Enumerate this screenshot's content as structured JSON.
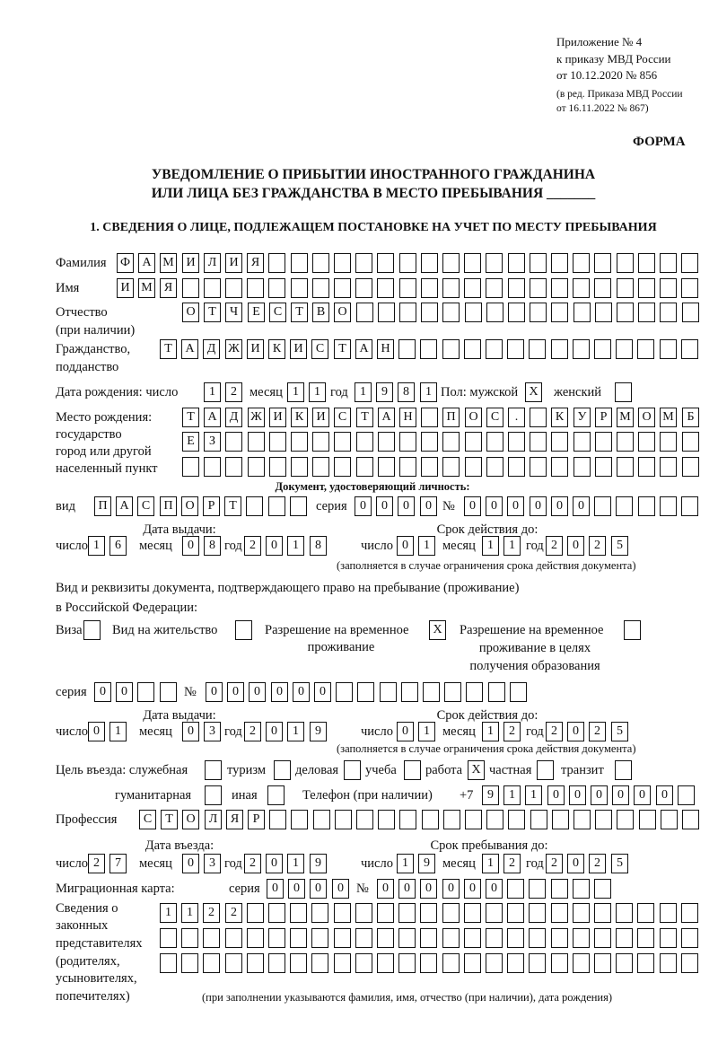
{
  "header": {
    "appendix": "Приложение № 4",
    "order": "к приказу МВД России",
    "order_date": "от 10.12.2020 № 856",
    "revision_1": "(в ред. Приказа МВД России",
    "revision_2": "от 16.11.2022 № 867)",
    "form_label": "ФОРМА"
  },
  "title": {
    "line1": "УВЕДОМЛЕНИЕ О ПРИБЫТИИ ИНОСТРАННОГО ГРАЖДАНИНА",
    "line2": "ИЛИ ЛИЦА БЕЗ ГРАЖДАНСТВА В МЕСТО ПРЕБЫВАНИЯ _______"
  },
  "section1": {
    "heading": "1. СВЕДЕНИЯ О ЛИЦЕ, ПОДЛЕЖАЩЕМ ПОСТАНОВКЕ НА УЧЕТ ПО МЕСТУ ПРЕБЫВАНИЯ"
  },
  "labels": {
    "surname": "Фамилия",
    "name": "Имя",
    "patronymic": "Отчество",
    "patronymic_note": "(при наличии)",
    "citizenship": "Гражданство,",
    "citizenship_2": "подданство",
    "birth_date": "Дата рождения:  число",
    "day": "число",
    "month": "месяц",
    "year": "год",
    "sex": "Пол: мужской",
    "female": "женский",
    "birthplace_1": "Место рождения:",
    "birthplace_2": "государство",
    "birthplace_3": "город или другой",
    "birthplace_4": "населенный пункт",
    "id_document": "Документ, удостоверяющий личность:",
    "doc_type": "вид",
    "series": "серия",
    "number": "№",
    "issue_date": "Дата выдачи:",
    "valid_until": "Срок действия до:",
    "validity_note": "(заполняется в случае ограничения срока действия документа)",
    "stay_doc_1": "Вид и реквизиты документа, подтверждающего право на пребывание (проживание)",
    "stay_doc_2": "в Российской Федерации:",
    "visa": "Виза",
    "residence_permit": "Вид на жительство",
    "temp_residence_1": "Разрешение на временное",
    "temp_residence_2": "проживание",
    "temp_edu_1": "Разрешение на временное",
    "temp_edu_2": "проживание в целях",
    "temp_edu_3": "получения образования",
    "purpose": "Цель въезда: служебная",
    "tourism": "туризм",
    "business": "деловая",
    "study": "учеба",
    "work": "работа",
    "private": "частная",
    "transit": "транзит",
    "humanitarian": "гуманитарная",
    "other": "иная",
    "phone": "Телефон (при наличии)",
    "phone_prefix": "+7",
    "profession": "Профессия",
    "entry_date": "Дата въезда:",
    "stay_until": "Срок пребывания до:",
    "migration_card": "Миграционная карта:",
    "reps_1": "Сведения о",
    "reps_2": "законных",
    "reps_3": "представителях",
    "reps_4": "(родителях,",
    "reps_5": "усыновителях,",
    "reps_6": "попечителях)",
    "reps_note": "(при заполнении указываются фамилия, имя, отчество (при наличии), дата рождения)"
  },
  "fields": {
    "surname": "ФАМИЛИЯ",
    "name": "ИМЯ",
    "patronymic": "ОТЧЕСТВО",
    "citizenship": "ТАДЖИКИСТАН",
    "birth_day": "12",
    "birth_month": "11",
    "birth_year": "1981",
    "sex_male": "X",
    "sex_female": "",
    "birthplace_1": "ТАДЖИКИСТАН ПОС. КУРМОМБ",
    "birthplace_2": "ЕЗ",
    "birthplace_3": "",
    "doc_type": "ПАСПОРТ",
    "doc_series": "0000",
    "doc_number": "000000",
    "doc_issue_day": "16",
    "doc_issue_month": "08",
    "doc_issue_year": "2018",
    "doc_valid_day": "01",
    "doc_valid_month": "11",
    "doc_valid_year": "2025",
    "visa": "",
    "residence_permit": "",
    "temp_residence": "X",
    "temp_edu": "",
    "stay_series": "00",
    "stay_number": "000000",
    "stay_issue_day": "01",
    "stay_issue_month": "03",
    "stay_issue_year": "2019",
    "stay_valid_day": "01",
    "stay_valid_month": "12",
    "stay_valid_year": "2025",
    "purpose_official": "",
    "purpose_tourism": "",
    "purpose_business": "",
    "purpose_study": "",
    "purpose_work": "X",
    "purpose_private": "",
    "purpose_transit": "",
    "purpose_humanitarian": "",
    "purpose_other": "",
    "phone": "911000000",
    "profession": "СТОЛЯР",
    "entry_day": "27",
    "entry_month": "03",
    "entry_year": "2019",
    "stay_until_day": "19",
    "stay_until_month": "12",
    "stay_until_year": "2025",
    "mig_series": "0000",
    "mig_number": "000000",
    "reps_1": "1122",
    "reps_2": "",
    "reps_3": ""
  }
}
